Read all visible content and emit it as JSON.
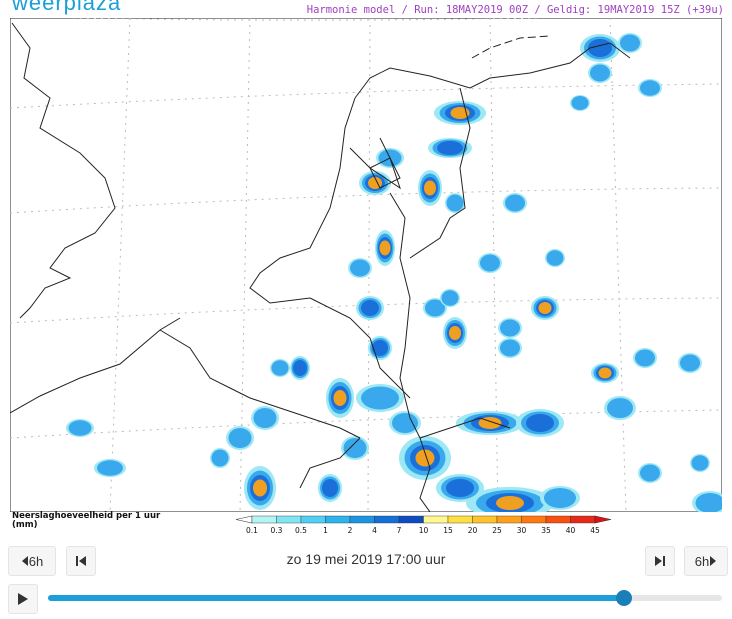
{
  "header": {
    "brand": "weerplaza",
    "model_info": "Harmonie model / Run: 18MAY2019 00Z / Geldig: 19MAY2019 15Z (+39u)"
  },
  "legend": {
    "title": "Neerslaghoeveelheid per 1 uur",
    "unit": "(mm)",
    "labels": [
      "0.1",
      "0.3",
      "0.5",
      "1",
      "2",
      "4",
      "7",
      "10",
      "15",
      "20",
      "25",
      "30",
      "35",
      "40",
      "45"
    ],
    "colors": [
      "#ffffff",
      "#b4f4f4",
      "#80e6f4",
      "#50d0f4",
      "#2cb4ec",
      "#1c94e4",
      "#1470d8",
      "#0c4cc0",
      "#fff890",
      "#ffe040",
      "#ffc428",
      "#ffa018",
      "#ff7810",
      "#f85010",
      "#e82818",
      "#e01010"
    ]
  },
  "controls": {
    "back_step": "6h",
    "datetime": "zo 19 mei 2019 17:00 uur",
    "forward_step": "6h"
  }
}
